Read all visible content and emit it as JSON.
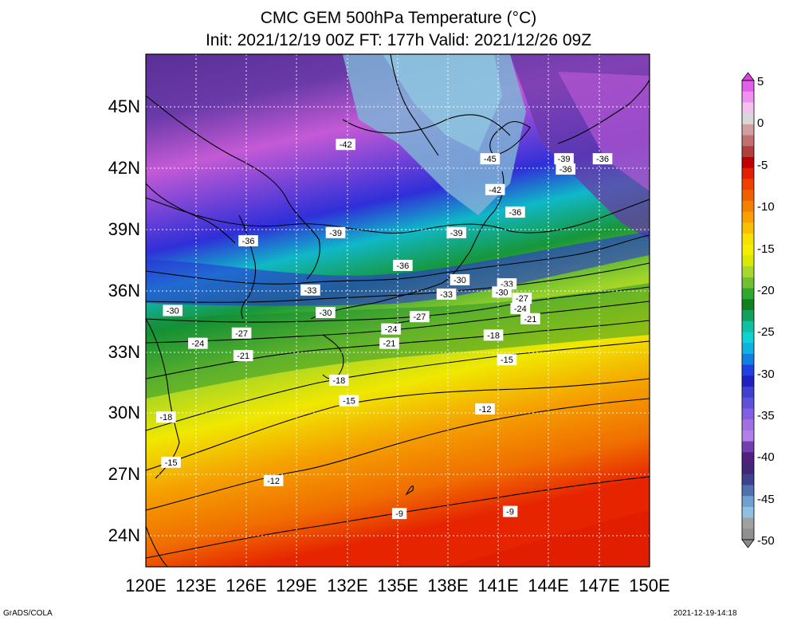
{
  "title": {
    "line1": "CMC GEM 500hPa Temperature (°C)",
    "line2": "Init: 2021/12/19 00Z  FT: 177h  Valid: 2021/12/26 09Z"
  },
  "map": {
    "lon_range": [
      120,
      150
    ],
    "lat_range": [
      22.5,
      47.5
    ],
    "lon_ticks": [
      "120E",
      "123E",
      "126E",
      "129E",
      "132E",
      "135E",
      "138E",
      "141E",
      "144E",
      "147E",
      "150E"
    ],
    "lat_ticks": [
      "45N",
      "42N",
      "39N",
      "36N",
      "33N",
      "30N",
      "27N",
      "24N"
    ],
    "isotherm_labels": [
      {
        "text": "-42",
        "lon": 131.9,
        "lat": 43.1
      },
      {
        "text": "-45",
        "lon": 140.5,
        "lat": 42.4
      },
      {
        "text": "-42",
        "lon": 140.8,
        "lat": 40.9
      },
      {
        "text": "-39",
        "lon": 144.9,
        "lat": 42.4
      },
      {
        "text": "-36",
        "lon": 147.2,
        "lat": 42.4
      },
      {
        "text": "-36",
        "lon": 145.0,
        "lat": 41.9
      },
      {
        "text": "-36",
        "lon": 142.0,
        "lat": 39.8
      },
      {
        "text": "-36",
        "lon": 126.1,
        "lat": 38.4
      },
      {
        "text": "-39",
        "lon": 131.3,
        "lat": 38.8
      },
      {
        "text": "-39",
        "lon": 138.5,
        "lat": 38.8
      },
      {
        "text": "-36",
        "lon": 135.3,
        "lat": 37.2
      },
      {
        "text": "-30",
        "lon": 138.7,
        "lat": 36.5
      },
      {
        "text": "-33",
        "lon": 141.5,
        "lat": 36.3
      },
      {
        "text": "-30",
        "lon": 141.2,
        "lat": 35.9
      },
      {
        "text": "-33",
        "lon": 129.8,
        "lat": 36.0
      },
      {
        "text": "-33",
        "lon": 137.9,
        "lat": 35.8
      },
      {
        "text": "-27",
        "lon": 142.4,
        "lat": 35.6
      },
      {
        "text": "-24",
        "lon": 142.3,
        "lat": 35.1
      },
      {
        "text": "-21",
        "lon": 142.9,
        "lat": 34.6
      },
      {
        "text": "-30",
        "lon": 121.6,
        "lat": 35.0
      },
      {
        "text": "-30",
        "lon": 130.7,
        "lat": 34.9
      },
      {
        "text": "-27",
        "lon": 136.3,
        "lat": 34.7
      },
      {
        "text": "-24",
        "lon": 134.6,
        "lat": 34.1
      },
      {
        "text": "-27",
        "lon": 125.7,
        "lat": 33.9
      },
      {
        "text": "-18",
        "lon": 140.7,
        "lat": 33.8
      },
      {
        "text": "-21",
        "lon": 134.5,
        "lat": 33.4
      },
      {
        "text": "-24",
        "lon": 123.1,
        "lat": 33.4
      },
      {
        "text": "-21",
        "lon": 125.8,
        "lat": 32.8
      },
      {
        "text": "-15",
        "lon": 141.5,
        "lat": 32.6
      },
      {
        "text": "-18",
        "lon": 131.5,
        "lat": 31.6
      },
      {
        "text": "-15",
        "lon": 132.1,
        "lat": 30.6
      },
      {
        "text": "-12",
        "lon": 140.2,
        "lat": 30.2
      },
      {
        "text": "-18",
        "lon": 121.2,
        "lat": 29.8
      },
      {
        "text": "-15",
        "lon": 121.5,
        "lat": 27.6
      },
      {
        "text": "-12",
        "lon": 127.6,
        "lat": 26.7
      },
      {
        "text": "-9",
        "lon": 135.1,
        "lat": 25.1
      },
      {
        "text": "-9",
        "lon": 141.7,
        "lat": 25.2
      }
    ]
  },
  "colorbar": {
    "labels": [
      "5",
      "0",
      "-5",
      "-10",
      "-15",
      "-20",
      "-25",
      "-30",
      "-35",
      "-40",
      "-45",
      "-50"
    ],
    "min": -50,
    "max": 5
  },
  "footer": {
    "left": "GrADS/COLA",
    "right": "2021-12-19-14:18"
  }
}
